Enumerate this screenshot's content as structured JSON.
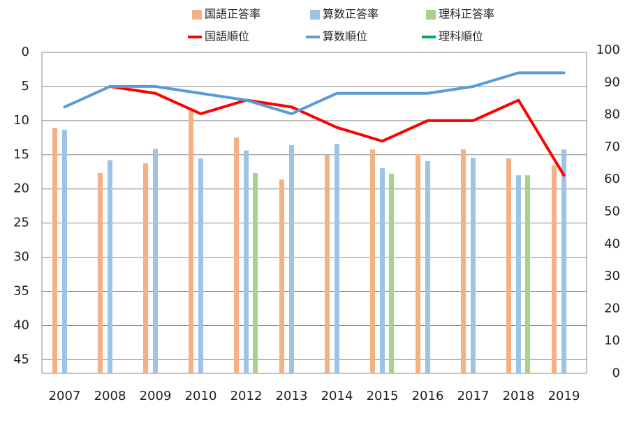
{
  "chart_data": {
    "type": "combo",
    "categories": [
      "2007",
      "2008",
      "2009",
      "2010",
      "2012",
      "2013",
      "2014",
      "2015",
      "2016",
      "2017",
      "2018",
      "2019"
    ],
    "ylim": [
      0,
      47
    ],
    "y_reversed": true,
    "yticks": [
      0,
      5,
      10,
      15,
      20,
      25,
      30,
      35,
      40,
      45
    ],
    "y2lim": [
      0,
      100
    ],
    "y2ticks": [
      0,
      10,
      20,
      30,
      40,
      50,
      60,
      70,
      80,
      90,
      100
    ],
    "grid": true,
    "legend": "top",
    "series": [
      {
        "name": "国語正答率",
        "type": "bar",
        "axis": "y2",
        "color": "#f4b183",
        "values": [
          76,
          62,
          65,
          82,
          73,
          60,
          67.6,
          69.3,
          67.8,
          69.3,
          66.5,
          64.4
        ]
      },
      {
        "name": "算数正答率",
        "type": "bar",
        "axis": "y2",
        "color": "#9dc3e6",
        "values": [
          75.4,
          66,
          69.5,
          66.5,
          69,
          70.6,
          71,
          63.5,
          65.7,
          66.7,
          61.3,
          69.3
        ]
      },
      {
        "name": "理科正答率",
        "type": "bar",
        "axis": "y2",
        "color": "#a9d18e",
        "values": [
          null,
          null,
          null,
          null,
          62,
          null,
          null,
          61.8,
          null,
          null,
          61.3,
          null
        ]
      },
      {
        "name": "国語順位",
        "type": "line",
        "color": "#ff0000",
        "values": [
          null,
          5,
          6,
          9,
          7,
          8,
          11,
          13,
          10,
          10,
          7,
          18
        ]
      },
      {
        "name": "算数順位",
        "type": "line",
        "color": "#5b9bd5",
        "values": [
          8,
          5,
          5,
          6,
          7,
          9,
          6,
          6,
          6,
          5,
          3,
          3
        ]
      },
      {
        "name": "理科順位",
        "type": "line",
        "color": "#00b050",
        "values": [
          null,
          null,
          null,
          null,
          null,
          null,
          null,
          null,
          null,
          null,
          null,
          null
        ]
      }
    ]
  }
}
